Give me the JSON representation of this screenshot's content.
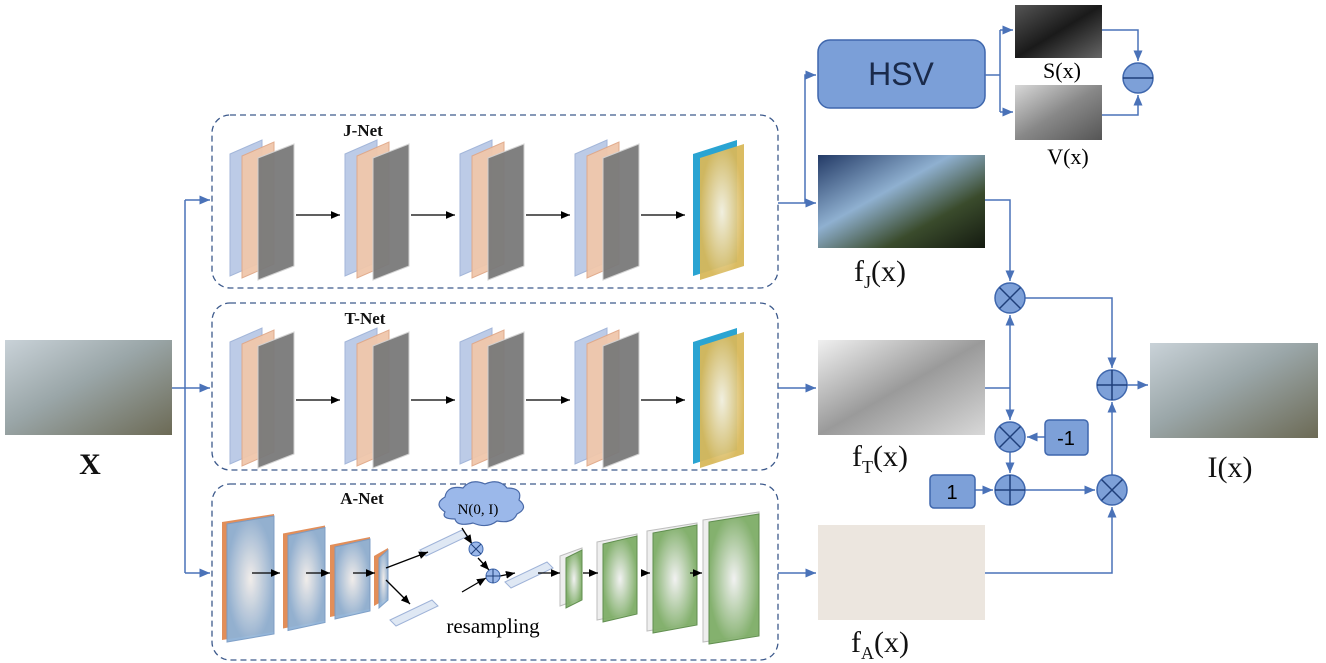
{
  "input": {
    "label": "X"
  },
  "networks": [
    {
      "label": "J-Net"
    },
    {
      "label": "T-Net"
    },
    {
      "label": "A-Net"
    }
  ],
  "hsv": {
    "label": "HSV"
  },
  "channels": {
    "s": "S(x)",
    "v": "V(x)"
  },
  "outputs": {
    "f_j": {
      "base": "f",
      "sub": "J",
      "tail": "(x)"
    },
    "f_t": {
      "base": "f",
      "sub": "T",
      "tail": "(x)"
    },
    "f_a": {
      "base": "f",
      "sub": "A",
      "tail": "(x)"
    },
    "result": {
      "label": "I(x)"
    }
  },
  "constants": {
    "minus_one": "-1",
    "one": "1"
  },
  "a_net": {
    "noise": "N(0, I)",
    "resampling": "resampling"
  }
}
